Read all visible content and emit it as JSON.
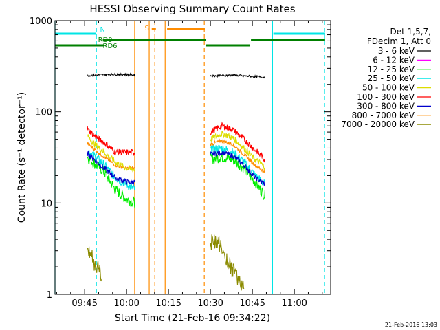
{
  "chart_data": {
    "type": "line",
    "title": "HESSI Observing Summary Count Rates",
    "xlabel": "Start Time (21-Feb-16 09:34:22)",
    "ylabel": "Count Rate (s⁻¹ detector⁻¹)",
    "yscale": "log",
    "ylim": [
      1,
      1000
    ],
    "xlim_minutes": [
      34.4,
      133.0
    ],
    "x_ticks": [
      {
        "t": 45,
        "label": "09:45"
      },
      {
        "t": 60,
        "label": "10:00"
      },
      {
        "t": 75,
        "label": "10:15"
      },
      {
        "t": 90,
        "label": "10:30"
      },
      {
        "t": 105,
        "label": "10:45"
      },
      {
        "t": 120,
        "label": "11:00"
      }
    ],
    "y_ticks": [
      {
        "v": 1,
        "label": "1"
      },
      {
        "v": 10,
        "label": "10"
      },
      {
        "v": 100,
        "label": "100"
      },
      {
        "v": 1000,
        "label": "1000"
      }
    ],
    "legend_header": [
      "Det 1,5,7,",
      "FDecim 1, Att 0"
    ],
    "series": [
      {
        "name": "3 - 6 keV",
        "color": "#000000",
        "segments": [
          {
            "x": [
              46.0,
              55.0,
              63.0
            ],
            "y": [
              250,
              258,
              255
            ]
          },
          {
            "x": [
              90.0,
              98.0,
              109.5
            ],
            "y": [
              248,
              252,
              240
            ]
          }
        ]
      },
      {
        "name": "6 - 12 keV",
        "color": "#ff00ff",
        "segments": []
      },
      {
        "name": "12 - 25 keV",
        "color": "#00ee00",
        "segments": [
          {
            "x": [
              46.0,
              48.0,
              52.0,
              56.0,
              60.0,
              63.0
            ],
            "y": [
              32,
              28,
              22,
              14,
              11,
              10
            ]
          },
          {
            "x": [
              90.0,
              94.0,
              98.0,
              102.0,
              106.0,
              109.5
            ],
            "y": [
              30,
              32,
              30,
              24,
              17,
              12
            ]
          }
        ]
      },
      {
        "name": "25 - 50 keV",
        "color": "#00e5e5",
        "segments": [
          {
            "x": [
              46.0,
              48.0,
              52.0,
              56.0,
              60.0,
              63.0
            ],
            "y": [
              38,
              34,
              26,
              19,
              16,
              14
            ]
          },
          {
            "x": [
              90.0,
              94.0,
              98.0,
              102.0,
              106.0,
              109.5
            ],
            "y": [
              38,
              40,
              36,
              28,
              20,
              16
            ]
          }
        ]
      },
      {
        "name": "50 - 100 keV",
        "color": "#dddd00",
        "segments": [
          {
            "x": [
              46.0,
              48.0,
              52.0,
              56.0,
              60.0,
              63.0
            ],
            "y": [
              55,
              46,
              36,
              28,
              24,
              23
            ]
          },
          {
            "x": [
              90.0,
              94.0,
              98.0,
              102.0,
              106.0,
              109.5
            ],
            "y": [
              50,
              58,
              52,
              40,
              30,
              25
            ]
          }
        ]
      },
      {
        "name": "100 - 300 keV",
        "color": "#ff0000",
        "segments": [
          {
            "x": [
              46.0,
              48.0,
              52.0,
              56.0,
              60.0,
              63.0
            ],
            "y": [
              65,
              56,
              46,
              36,
              36,
              36
            ]
          },
          {
            "x": [
              90.0,
              94.0,
              98.0,
              102.0,
              106.0,
              109.5
            ],
            "y": [
              60,
              70,
              64,
              50,
              38,
              30
            ]
          }
        ]
      },
      {
        "name": "300 - 800 keV",
        "color": "#0000cc",
        "segments": [
          {
            "x": [
              46.0,
              48.0,
              52.0,
              56.0,
              60.0,
              63.0
            ],
            "y": [
              35,
              31,
              24,
              19,
              17,
              17
            ]
          },
          {
            "x": [
              90.0,
              94.0,
              98.0,
              102.0,
              106.0,
              109.5
            ],
            "y": [
              34,
              36,
              33,
              26,
              19,
              16
            ]
          }
        ]
      },
      {
        "name": "800 - 7000 keV",
        "color": "#ff8c00",
        "segments": [
          {
            "x": [
              46.0,
              48.0,
              52.0,
              56.0,
              60.0,
              63.0
            ],
            "y": [
              45,
              40,
              32,
              26,
              24,
              24
            ]
          },
          {
            "x": [
              90.0,
              94.0,
              98.0,
              102.0,
              106.0,
              109.5
            ],
            "y": [
              44,
              48,
              44,
              34,
              26,
              22
            ]
          }
        ]
      },
      {
        "name": "7000 - 20000 keV",
        "color": "#8b8b00",
        "segments": [
          {
            "x": [
              46.0,
              47.0,
              48.5,
              50.0,
              51.0
            ],
            "y": [
              3.5,
              2.8,
              2.2,
              2.0,
              1.6
            ]
          },
          {
            "x": [
              90.0,
              92.0,
              94.0,
              96.0,
              98.0,
              100.0,
              102.0
            ],
            "y": [
              3.5,
              4.0,
              3.2,
              2.4,
              1.8,
              1.5,
              1.2
            ]
          }
        ]
      }
    ],
    "flag_bars": [
      {
        "label": "N",
        "label_t": 50.5,
        "color": "#00e5e5",
        "segments": [
          [
            34.4,
            49.0
          ],
          [
            112.5,
            131.0
          ]
        ]
      },
      {
        "label": "RD0",
        "label_t": 49.8,
        "color": "#008000",
        "segments": [
          [
            51.5,
            88.5
          ],
          [
            104.5,
            131.0
          ]
        ]
      },
      {
        "label": "RD6",
        "label_t": 51.5,
        "color": "#008000",
        "segments": [
          [
            34.4,
            52.0
          ],
          [
            88.5,
            104.0
          ]
        ]
      },
      {
        "label": "S",
        "label_t": 66.5,
        "color": "#ff8c00",
        "segments": [
          [
            69.0,
            70.5
          ],
          [
            74.5,
            88.0
          ]
        ]
      }
    ],
    "vertical_lines": [
      {
        "t": 34.4,
        "color": "#00e5e5",
        "style": "solid"
      },
      {
        "t": 49.2,
        "color": "#00e5e5",
        "style": "dashed"
      },
      {
        "t": 112.2,
        "color": "#00e5e5",
        "style": "solid"
      },
      {
        "t": 130.8,
        "color": "#00e5e5",
        "style": "dashed"
      },
      {
        "t": 62.9,
        "color": "#ff8c00",
        "style": "solid"
      },
      {
        "t": 68.1,
        "color": "#ff8c00",
        "style": "solid"
      },
      {
        "t": 70.1,
        "color": "#ff8c00",
        "style": "dashed"
      },
      {
        "t": 73.8,
        "color": "#ff8c00",
        "style": "solid"
      },
      {
        "t": 87.8,
        "color": "#ff8c00",
        "style": "dashed"
      }
    ]
  },
  "footer_timestamp": "21-Feb-2016 13:03"
}
